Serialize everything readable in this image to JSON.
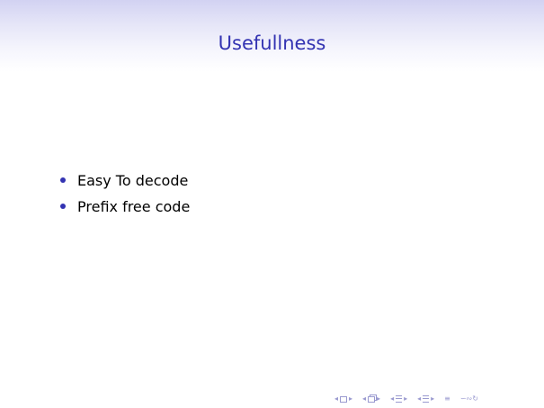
{
  "slide": {
    "title": "Usefullness",
    "bullets": [
      "Easy To decode",
      "Prefix free code"
    ]
  },
  "navigation": {
    "icons": [
      "nav-frame-icon",
      "nav-subsection-icon",
      "nav-section-icon",
      "nav-document-icon",
      "nav-align-icon",
      "nav-search-icon"
    ],
    "accent_color": "#3333b2",
    "nav_color": "#9a9ad0"
  }
}
